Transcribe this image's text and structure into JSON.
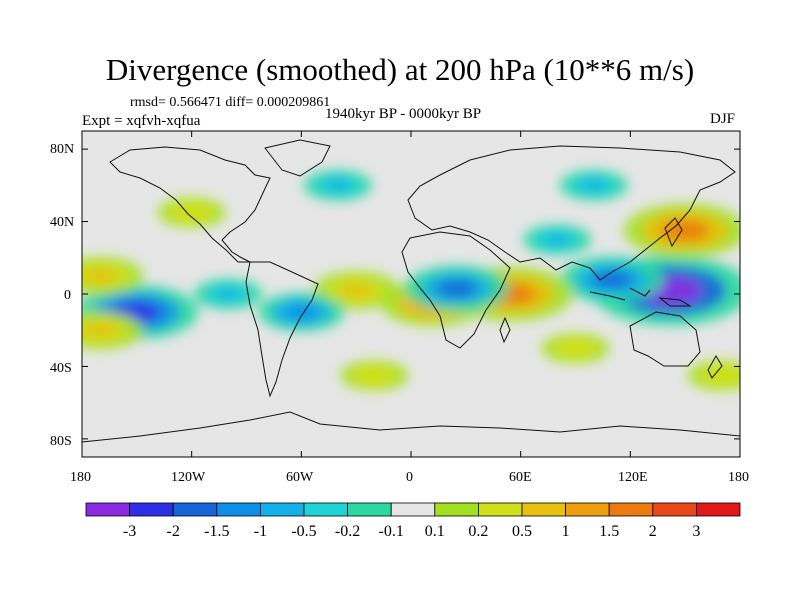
{
  "title": "Divergence (smoothed) at 200 hPa (10**6 m/s)",
  "stats": {
    "rmsd_label": "rmsd= 0.566471 diff= 0.000209861"
  },
  "experiment": "Expt = xqfvh-xqfua",
  "period": "1940kyr BP - 0000kyr BP",
  "season": "DJF",
  "chart_data": {
    "type": "heatmap",
    "variable": "Divergence (smoothed) at 200 hPa",
    "units": "10**6 m/s",
    "x_range": [
      -180,
      180
    ],
    "y_range": [
      -90,
      90
    ],
    "lat_ticks": [
      "80N",
      "40N",
      "0",
      "40S",
      "80S"
    ],
    "lon_ticks": [
      "180",
      "120W",
      "60W",
      "0",
      "60E",
      "120E",
      "180"
    ],
    "colorbar": {
      "levels": [
        "-3",
        "-2",
        "-1.5",
        "-1",
        "-0.5",
        "-0.2",
        "-0.1",
        "0.1",
        "0.2",
        "0.5",
        "1",
        "1.5",
        "2",
        "3"
      ],
      "colors": [
        "#8a2be2",
        "#2e2ee6",
        "#1565d8",
        "#0d8ee8",
        "#14b0e8",
        "#1ed4d4",
        "#2ad8a0",
        "#e6e6e6",
        "#a4e022",
        "#cfe01a",
        "#e8c010",
        "#ee9e0c",
        "#ec7a10",
        "#e84818",
        "#e01818"
      ]
    },
    "anomalies": [
      {
        "lon": 142,
        "lat": 2,
        "value": -3
      },
      {
        "lon": 110,
        "lat": 8,
        "value": -1.5
      },
      {
        "lon": 150,
        "lat": 35,
        "value": 2
      },
      {
        "lon": 55,
        "lat": 0,
        "value": 2
      },
      {
        "lon": 12,
        "lat": -5,
        "value": 1.5
      },
      {
        "lon": -30,
        "lat": 2,
        "value": 1
      },
      {
        "lon": -150,
        "lat": -10,
        "value": -2
      },
      {
        "lon": 25,
        "lat": 3,
        "value": -1.5
      },
      {
        "lon": -170,
        "lat": -20,
        "value": 1
      },
      {
        "lon": -170,
        "lat": 10,
        "value": 1
      },
      {
        "lon": -100,
        "lat": 0,
        "value": -0.5
      },
      {
        "lon": -60,
        "lat": -10,
        "value": -1
      },
      {
        "lon": 90,
        "lat": -30,
        "value": 0.5
      },
      {
        "lon": -20,
        "lat": -45,
        "value": 0.5
      },
      {
        "lon": -40,
        "lat": 60,
        "value": -0.5
      },
      {
        "lon": 100,
        "lat": 60,
        "value": -0.5
      },
      {
        "lon": 80,
        "lat": 30,
        "value": -0.5
      },
      {
        "lon": -120,
        "lat": 45,
        "value": 0.5
      },
      {
        "lon": 170,
        "lat": -45,
        "value": 0.5
      }
    ]
  }
}
